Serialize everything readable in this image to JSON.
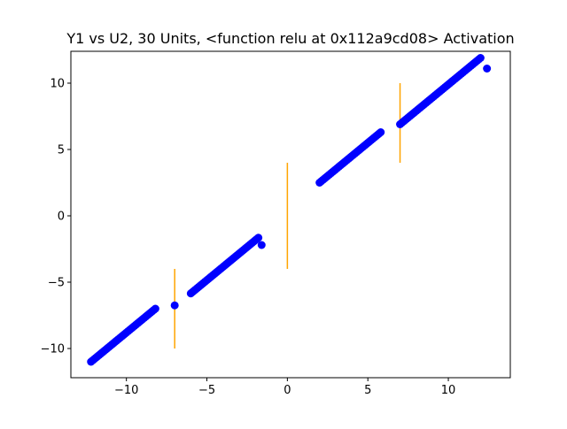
{
  "chart_data": {
    "type": "scatter",
    "title": "Y1 vs U2, 30 Units, <function relu at 0x112a9cd08> Activation",
    "xlabel": "",
    "ylabel": "",
    "xlim": [
      -13.45,
      13.85
    ],
    "ylim": [
      -12.2,
      12.4
    ],
    "xticks": [
      -10,
      -5,
      0,
      5,
      10
    ],
    "yticks": [
      -10,
      -5,
      0,
      5,
      10
    ],
    "xtick_labels": [
      "−10",
      "−5",
      "0",
      "5",
      "10"
    ],
    "ytick_labels": [
      "−10",
      "−5",
      "0",
      "5",
      "10"
    ],
    "grid": false,
    "legend": "none",
    "series": [
      {
        "kind": "points",
        "color": "#0000ff",
        "segments": [
          {
            "x_start": -12.2,
            "x_end": -8.2,
            "offset": 1.2,
            "step": 0.1
          },
          {
            "x_start": -6.0,
            "x_end": -1.8,
            "offset": 0.15,
            "step": 0.1
          },
          {
            "x_start": 2.0,
            "x_end": 5.8,
            "offset": 0.5,
            "step": 0.1
          },
          {
            "x_start": 7.0,
            "x_end": 12.0,
            "offset": -0.1,
            "step": 0.1
          }
        ],
        "points": [
          {
            "x": -7.0,
            "y": -6.75
          },
          {
            "x": -1.6,
            "y": -2.2
          },
          {
            "x": 12.4,
            "y": 11.1
          }
        ]
      }
    ],
    "vlines": [
      {
        "x": -7,
        "ymin": -10,
        "ymax": -4,
        "color": "#ffa500"
      },
      {
        "x": 0,
        "ymin": -4,
        "ymax": 4,
        "color": "#ffa500"
      },
      {
        "x": 7,
        "ymin": 4,
        "ymax": 10,
        "color": "#ffa500"
      }
    ]
  }
}
